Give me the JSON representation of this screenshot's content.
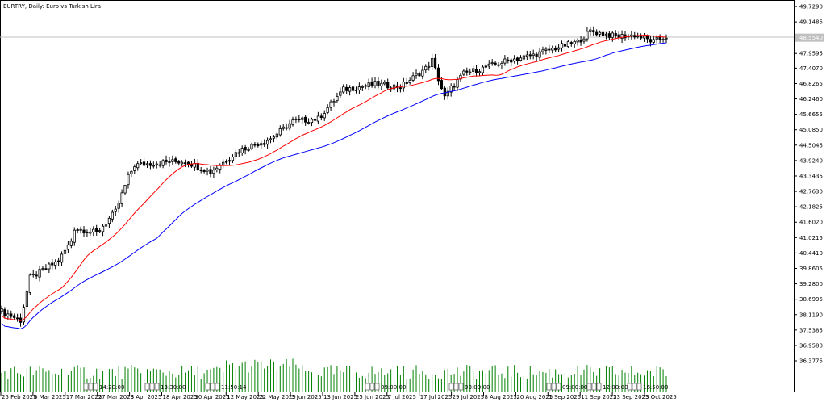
{
  "window": {
    "title": "EURTRY, Daily:  Euro vs Turkish Lira"
  },
  "colors": {
    "background": "#ffffff",
    "candle_outline": "#000000",
    "bull_fill": "#ffffff",
    "bear_fill": "#000000",
    "ma_fast": "#ff0000",
    "ma_slow": "#0000ff",
    "volume": "#008000",
    "current_price_line": "#c0c0c0"
  },
  "chart_data": {
    "type": "candlestick",
    "symbol": "EURTRY",
    "timeframe": "Daily",
    "title": "EURTRY, Daily:  Euro vs Turkish Lira",
    "y_axis": {
      "ylim": [
        35.8,
        49.73
      ],
      "ticks": [
        "49.7290",
        "49.1485",
        "48.5540",
        "47.9595",
        "47.4070",
        "46.8265",
        "46.2460",
        "45.6655",
        "45.0850",
        "44.5045",
        "43.9240",
        "43.3435",
        "42.7630",
        "42.1825",
        "41.6020",
        "41.0215",
        "40.4410",
        "39.8605",
        "39.2800",
        "38.6995",
        "38.1190",
        "37.5385",
        "36.9580",
        "36.3775"
      ],
      "current_price": "48.5540"
    },
    "x_axis": {
      "labels": [
        "25 Feb 2025",
        "6 Mar 2025",
        "17 Mar 2025",
        "27 Mar 2025",
        "8 Apr 2025",
        "18 Apr 2025",
        "30 Apr 2025",
        "12 May 2025",
        "22 May 2025",
        "3 Jun 2025",
        "13 Jun 2025",
        "25 Jun 2025",
        "7 Jul 2025",
        "17 Jul 2025",
        "29 Jul 2025",
        "8 Aug 2025",
        "20 Aug 2025",
        "1 Sep 2025",
        "11 Sep 2025",
        "23 Sep 2025",
        "3 Oct 2025"
      ]
    },
    "overlays": [
      {
        "name": "",
        "color": "#ff0000",
        "type": "moving-average"
      },
      {
        "name": "",
        "color": "#0000ff",
        "type": "moving-average"
      }
    ],
    "volume": {
      "color": "#008000"
    },
    "session_markers": [
      "14:20:00",
      "13:30:00",
      "11:50:14",
      "09:00:00",
      "08:00:00",
      "09:00:00",
      "12:00:00",
      "16:50:00"
    ],
    "anchors": [
      {
        "i": 0,
        "p": 38.25
      },
      {
        "i": 6,
        "p": 37.9
      },
      {
        "i": 9,
        "p": 39.5
      },
      {
        "i": 18,
        "p": 40.15
      },
      {
        "i": 22,
        "p": 40.9
      },
      {
        "i": 23,
        "p": 41.38
      },
      {
        "i": 30,
        "p": 41.2
      },
      {
        "i": 36,
        "p": 42.0
      },
      {
        "i": 40,
        "p": 43.3
      },
      {
        "i": 42,
        "p": 43.75
      },
      {
        "i": 50,
        "p": 43.85
      },
      {
        "i": 58,
        "p": 43.9
      },
      {
        "i": 66,
        "p": 43.5
      },
      {
        "i": 75,
        "p": 44.3
      },
      {
        "i": 85,
        "p": 44.75
      },
      {
        "i": 92,
        "p": 45.4
      },
      {
        "i": 100,
        "p": 45.5
      },
      {
        "i": 108,
        "p": 46.6
      },
      {
        "i": 118,
        "p": 46.8
      },
      {
        "i": 126,
        "p": 46.7
      },
      {
        "i": 134,
        "p": 47.4
      },
      {
        "i": 136,
        "p": 47.7
      },
      {
        "i": 140,
        "p": 46.3
      },
      {
        "i": 142,
        "p": 46.65
      },
      {
        "i": 146,
        "p": 47.2
      },
      {
        "i": 152,
        "p": 47.4
      },
      {
        "i": 160,
        "p": 47.7
      },
      {
        "i": 168,
        "p": 47.9
      },
      {
        "i": 176,
        "p": 48.2
      },
      {
        "i": 182,
        "p": 48.4
      },
      {
        "i": 186,
        "p": 48.8
      },
      {
        "i": 194,
        "p": 48.6
      },
      {
        "i": 200,
        "p": 48.65
      },
      {
        "i": 206,
        "p": 48.4
      },
      {
        "i": 210,
        "p": 48.6
      }
    ]
  }
}
